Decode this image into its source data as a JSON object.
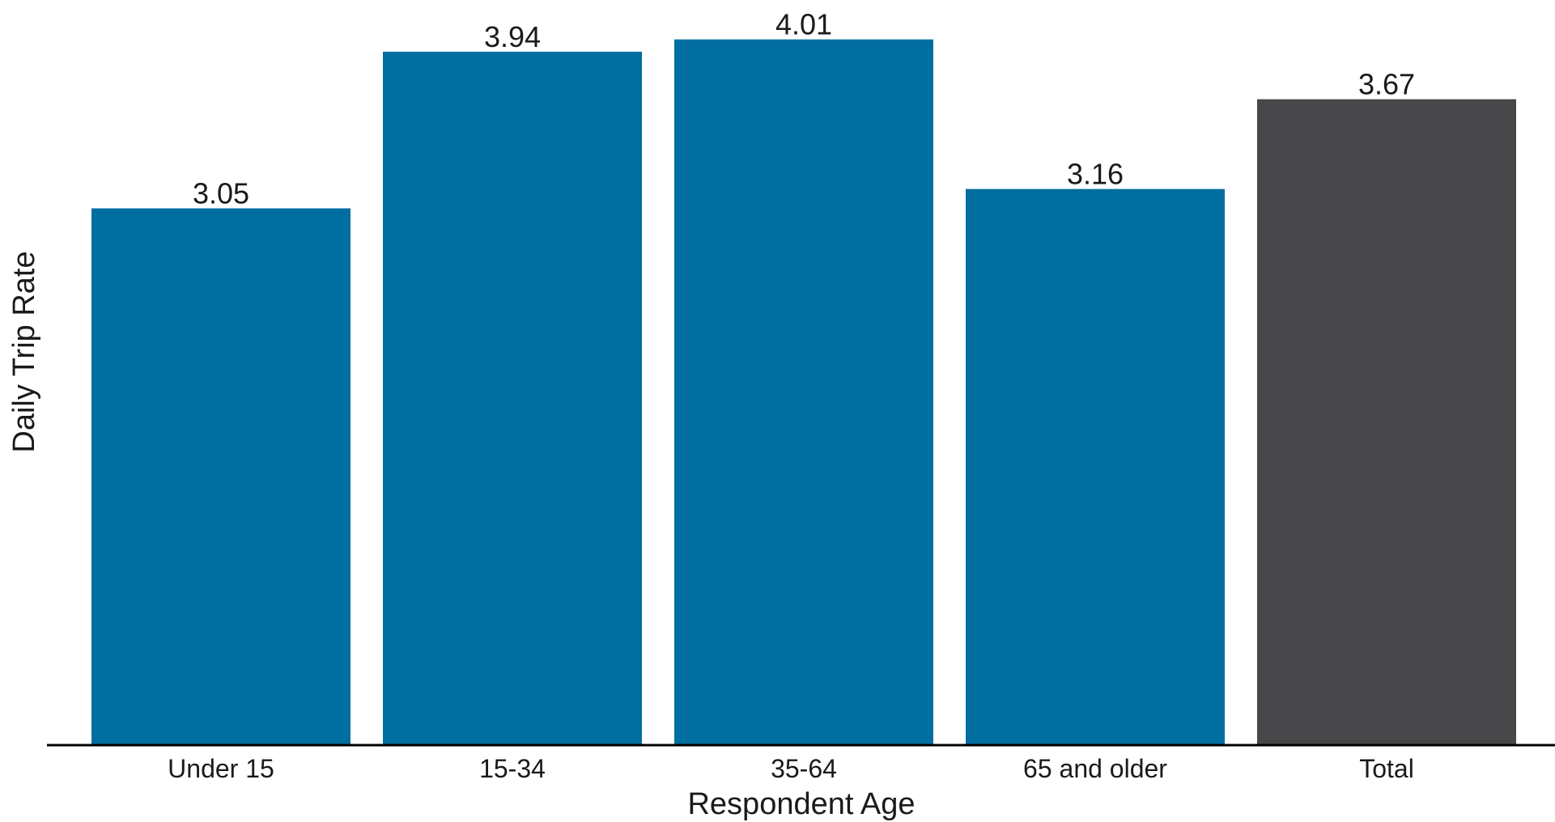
{
  "chart_data": {
    "type": "bar",
    "categories": [
      "Under 15",
      "15-34",
      "35-64",
      "65 and older",
      "Total"
    ],
    "values": [
      3.05,
      3.94,
      4.01,
      3.16,
      3.67
    ],
    "value_labels": [
      "3.05",
      "3.94",
      "4.01",
      "3.16",
      "3.67"
    ],
    "bar_colors": [
      "#006ea0",
      "#006ea0",
      "#006ea0",
      "#006ea0",
      "#48484a"
    ],
    "xlabel": "Respondent Age",
    "ylabel": "Daily Trip Rate",
    "ylim": [
      0,
      4.05
    ],
    "grid": false,
    "legend": "none"
  }
}
